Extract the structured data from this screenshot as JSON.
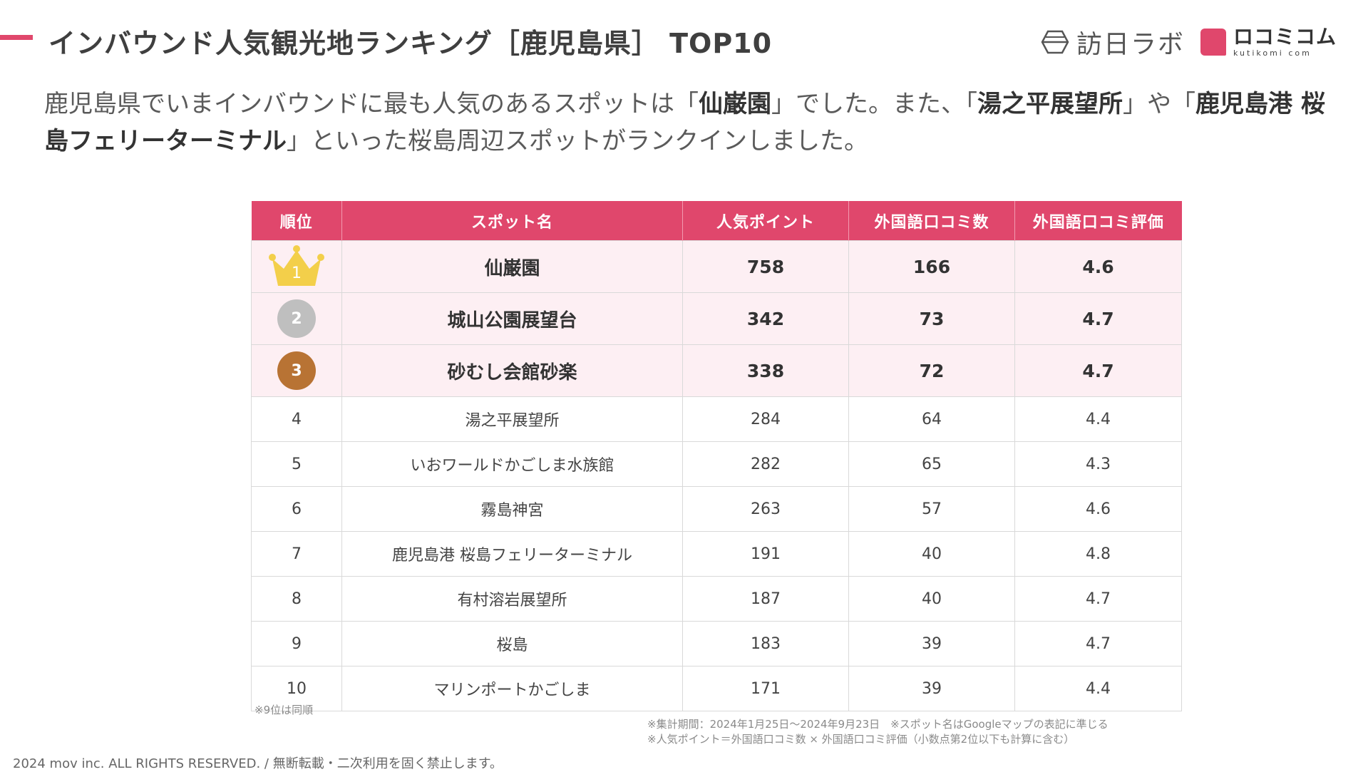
{
  "header": {
    "title": "インバウンド人気観光地ランキング［鹿児島県］ TOP10",
    "brand_color": "#e0476c"
  },
  "logos": {
    "lab_text": "訪日ラボ",
    "kuti_text": "ロコミコム",
    "kuti_sub": "kutikomi com"
  },
  "intro": {
    "p1": "鹿児島県でいまインバウンドに最も人気のあるスポットは「",
    "b1": "仙巌園",
    "p2": "」でした。また、「",
    "b2": "湯之平展望所",
    "p3": "」や「",
    "b3": "鹿児島港 桜島フェリーターミナル",
    "p4": "」といった桜島周辺スポットがランクインしました。"
  },
  "table": {
    "headers": [
      "順位",
      "スポット名",
      "人気ポイント",
      "外国語口コミ数",
      "外国語口コミ評価"
    ],
    "rows": [
      {
        "rank": "1",
        "name": "仙巌園",
        "points": "758",
        "reviews": "166",
        "rating": "4.6"
      },
      {
        "rank": "2",
        "name": "城山公園展望台",
        "points": "342",
        "reviews": "73",
        "rating": "4.7"
      },
      {
        "rank": "3",
        "name": "砂むし会館砂楽",
        "points": "338",
        "reviews": "72",
        "rating": "4.7"
      },
      {
        "rank": "4",
        "name": "湯之平展望所",
        "points": "284",
        "reviews": "64",
        "rating": "4.4"
      },
      {
        "rank": "5",
        "name": "いおワールドかごしま水族館",
        "points": "282",
        "reviews": "65",
        "rating": "4.3"
      },
      {
        "rank": "6",
        "name": "霧島神宮",
        "points": "263",
        "reviews": "57",
        "rating": "4.6"
      },
      {
        "rank": "7",
        "name": "鹿児島港 桜島フェリーターミナル",
        "points": "191",
        "reviews": "40",
        "rating": "4.8"
      },
      {
        "rank": "8",
        "name": "有村溶岩展望所",
        "points": "187",
        "reviews": "40",
        "rating": "4.7"
      },
      {
        "rank": "9",
        "name": "桜島",
        "points": "183",
        "reviews": "39",
        "rating": "4.7"
      },
      {
        "rank": "10",
        "name": "マリンポートかごしま",
        "points": "171",
        "reviews": "39",
        "rating": "4.4"
      }
    ]
  },
  "notes": {
    "tie": "※9位は同順",
    "period": "※集計期間：2024年1月25日～2024年9月23日　※スポット名はGoogleマップの表記に準じる",
    "formula": "※人気ポイント＝外国語口コミ数 × 外国語口コミ評価（小数点第2位以下も計算に含む）"
  },
  "footer": {
    "copyright": "2024 mov inc. ALL RIGHTS RESERVED. / 無断転載・二次利用を固く禁止します。"
  },
  "medal_colors": {
    "gold": "#f3cf4a",
    "silver": "#bfbfbf",
    "bronze": "#b87334"
  }
}
